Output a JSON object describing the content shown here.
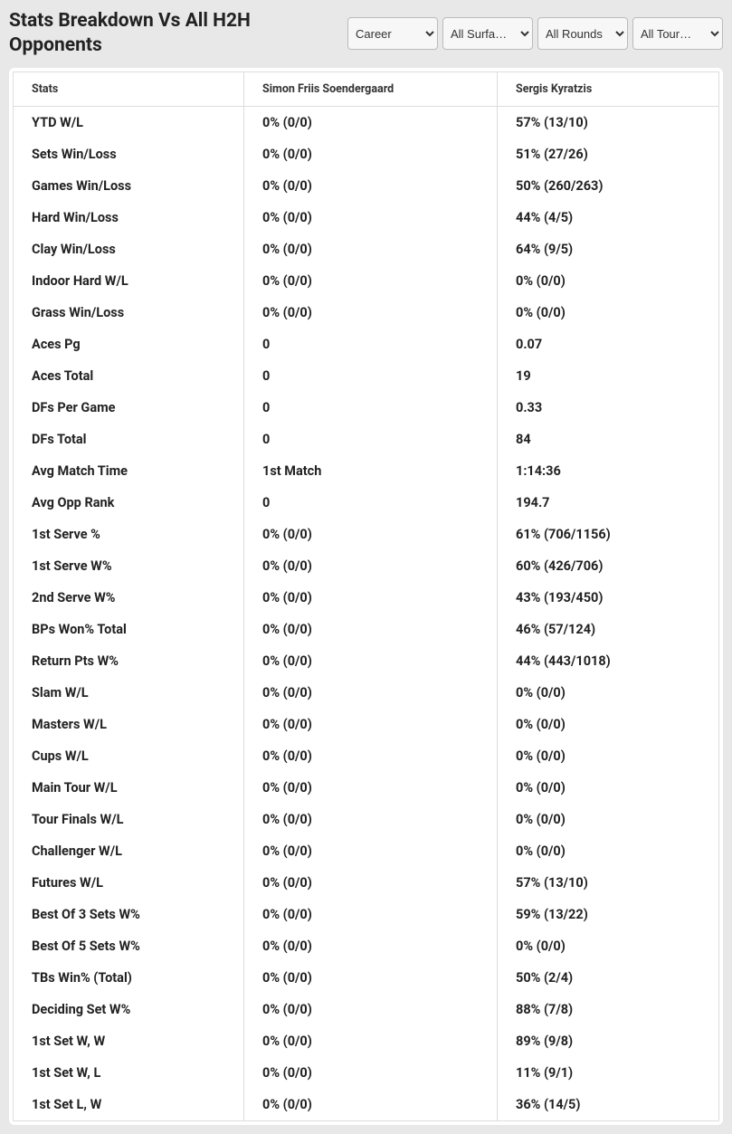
{
  "title": "Stats Breakdown Vs All H2H Opponents",
  "filters": {
    "period": "Career",
    "surface": "All Surfa…",
    "round": "All Rounds",
    "tour": "All Tour…"
  },
  "table": {
    "columns": [
      "Stats",
      "Simon Friis Soendergaard",
      "Sergis Kyratzis"
    ],
    "rows": [
      [
        "YTD W/L",
        "0% (0/0)",
        "57% (13/10)"
      ],
      [
        "Sets Win/Loss",
        "0% (0/0)",
        "51% (27/26)"
      ],
      [
        "Games Win/Loss",
        "0% (0/0)",
        "50% (260/263)"
      ],
      [
        "Hard Win/Loss",
        "0% (0/0)",
        "44% (4/5)"
      ],
      [
        "Clay Win/Loss",
        "0% (0/0)",
        "64% (9/5)"
      ],
      [
        "Indoor Hard W/L",
        "0% (0/0)",
        "0% (0/0)"
      ],
      [
        "Grass Win/Loss",
        "0% (0/0)",
        "0% (0/0)"
      ],
      [
        "Aces Pg",
        "0",
        "0.07"
      ],
      [
        "Aces Total",
        "0",
        "19"
      ],
      [
        "DFs Per Game",
        "0",
        "0.33"
      ],
      [
        "DFs Total",
        "0",
        "84"
      ],
      [
        "Avg Match Time",
        "1st Match",
        "1:14:36"
      ],
      [
        "Avg Opp Rank",
        "0",
        "194.7"
      ],
      [
        "1st Serve %",
        "0% (0/0)",
        "61% (706/1156)"
      ],
      [
        "1st Serve W%",
        "0% (0/0)",
        "60% (426/706)"
      ],
      [
        "2nd Serve W%",
        "0% (0/0)",
        "43% (193/450)"
      ],
      [
        "BPs Won% Total",
        "0% (0/0)",
        "46% (57/124)"
      ],
      [
        "Return Pts W%",
        "0% (0/0)",
        "44% (443/1018)"
      ],
      [
        "Slam W/L",
        "0% (0/0)",
        "0% (0/0)"
      ],
      [
        "Masters W/L",
        "0% (0/0)",
        "0% (0/0)"
      ],
      [
        "Cups W/L",
        "0% (0/0)",
        "0% (0/0)"
      ],
      [
        "Main Tour W/L",
        "0% (0/0)",
        "0% (0/0)"
      ],
      [
        "Tour Finals W/L",
        "0% (0/0)",
        "0% (0/0)"
      ],
      [
        "Challenger W/L",
        "0% (0/0)",
        "0% (0/0)"
      ],
      [
        "Futures W/L",
        "0% (0/0)",
        "57% (13/10)"
      ],
      [
        "Best Of 3 Sets W%",
        "0% (0/0)",
        "59% (13/22)"
      ],
      [
        "Best Of 5 Sets W%",
        "0% (0/0)",
        "0% (0/0)"
      ],
      [
        "TBs Win% (Total)",
        "0% (0/0)",
        "50% (2/4)"
      ],
      [
        "Deciding Set W%",
        "0% (0/0)",
        "88% (7/8)"
      ],
      [
        "1st Set W, W",
        "0% (0/0)",
        "89% (9/8)"
      ],
      [
        "1st Set W, L",
        "0% (0/0)",
        "11% (9/1)"
      ],
      [
        "1st Set L, W",
        "0% (0/0)",
        "36% (14/5)"
      ]
    ]
  }
}
